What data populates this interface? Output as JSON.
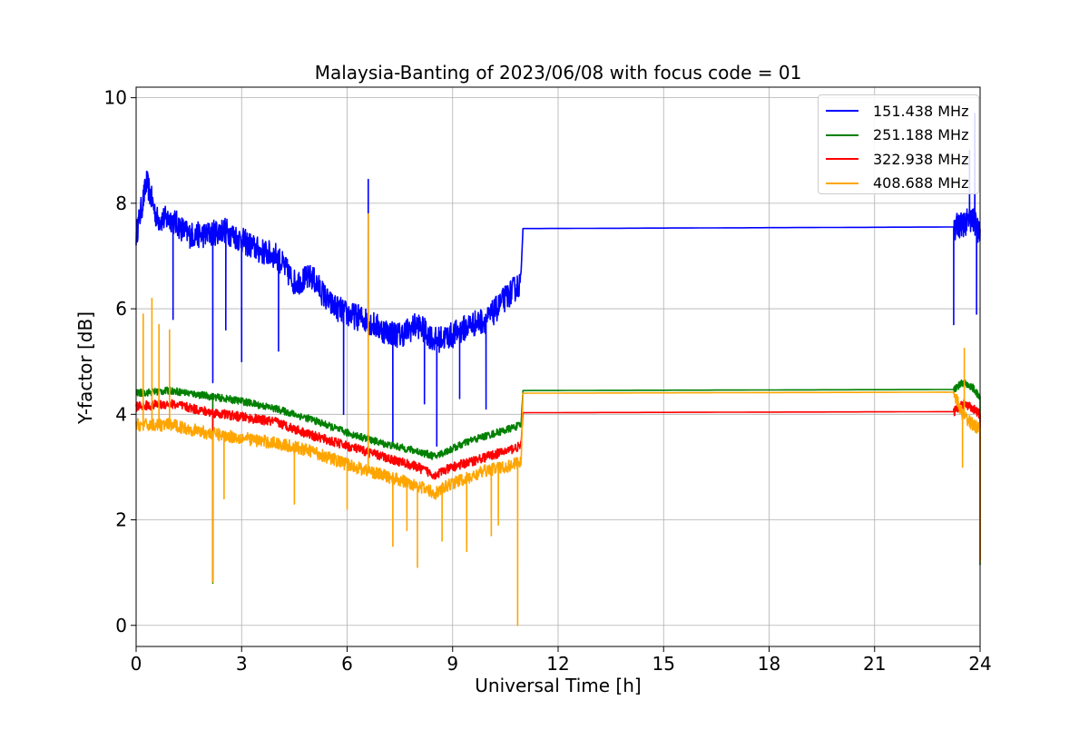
{
  "chart_data": {
    "type": "line",
    "title": "Malaysia-Banting of 2023/06/08 with focus code = 01",
    "xlabel": "Universal Time [h]",
    "ylabel": "Y-factor [dB]",
    "xlim": [
      0,
      24
    ],
    "ylim": [
      -0.4,
      10.2
    ],
    "xticks": [
      "0",
      "3",
      "6",
      "9",
      "12",
      "15",
      "18",
      "21",
      "24"
    ],
    "yticks": [
      "0",
      "2",
      "4",
      "6",
      "8",
      "10"
    ],
    "grid": true,
    "legend_position": "top-right",
    "series": [
      {
        "name": "151.438 MHz",
        "color": "#0000ff",
        "x": [
          0,
          0.3,
          0.6,
          1,
          1.5,
          2,
          2.5,
          3,
          3.5,
          4,
          4.5,
          5,
          5.5,
          6,
          6.5,
          7,
          7.5,
          8,
          8.5,
          9,
          9.5,
          10,
          10.5,
          10.95,
          11.0,
          23.25,
          23.5,
          23.8,
          24
        ],
        "y": [
          7.4,
          8.4,
          7.7,
          7.7,
          7.4,
          7.4,
          7.5,
          7.3,
          7.1,
          7.0,
          6.5,
          6.6,
          6.1,
          5.9,
          5.8,
          5.6,
          5.5,
          5.7,
          5.4,
          5.5,
          5.7,
          5.8,
          6.2,
          6.5,
          7.52,
          7.55,
          7.6,
          7.7,
          7.4
        ],
        "noise": 0.25
      },
      {
        "name": "251.188 MHz",
        "color": "#008000",
        "x": [
          0,
          1,
          2,
          3,
          4,
          5,
          6,
          7,
          8,
          8.5,
          9,
          9.5,
          10,
          10.5,
          10.95,
          11.0,
          23.25,
          23.5,
          23.8,
          24
        ],
        "y": [
          4.4,
          4.45,
          4.35,
          4.25,
          4.1,
          3.9,
          3.65,
          3.45,
          3.3,
          3.2,
          3.35,
          3.5,
          3.6,
          3.7,
          3.8,
          4.45,
          4.47,
          4.6,
          4.5,
          4.3
        ],
        "noise": 0.07
      },
      {
        "name": "322.938 MHz",
        "color": "#ff0000",
        "x": [
          0,
          1,
          2,
          3,
          4,
          5,
          6,
          7,
          8,
          8.5,
          9,
          9.5,
          10,
          10.5,
          10.95,
          11.0,
          23.25,
          23.5,
          23.8,
          24
        ],
        "y": [
          4.15,
          4.2,
          4.05,
          3.95,
          3.85,
          3.6,
          3.4,
          3.2,
          3.0,
          2.85,
          3.0,
          3.1,
          3.2,
          3.3,
          3.4,
          4.03,
          4.05,
          4.2,
          4.1,
          4.0
        ],
        "noise": 0.09
      },
      {
        "name": "408.688 MHz",
        "color": "#ffa500",
        "x": [
          0,
          1,
          2,
          3,
          4,
          5,
          6,
          7,
          8,
          8.5,
          9,
          9.5,
          10,
          10.5,
          10.95,
          11.0,
          23.25,
          23.5,
          23.8,
          24
        ],
        "y": [
          3.8,
          3.8,
          3.65,
          3.55,
          3.45,
          3.3,
          3.05,
          2.85,
          2.65,
          2.5,
          2.7,
          2.8,
          2.95,
          3.0,
          3.1,
          4.4,
          4.42,
          4.0,
          3.8,
          3.7
        ],
        "noise": 0.12
      }
    ],
    "annotations": {
      "dips_151": [
        [
          1.05,
          5.8
        ],
        [
          2.18,
          4.6
        ],
        [
          2.55,
          5.6
        ],
        [
          3.0,
          5.0
        ],
        [
          4.05,
          5.2
        ],
        [
          5.9,
          4.0
        ],
        [
          7.3,
          3.4
        ],
        [
          8.2,
          4.2
        ],
        [
          8.55,
          3.4
        ],
        [
          9.2,
          4.3
        ],
        [
          9.95,
          4.1
        ],
        [
          23.25,
          5.7
        ],
        [
          23.9,
          5.9
        ]
      ],
      "spikes_151": [
        [
          6.6,
          8.45
        ],
        [
          23.7,
          9.0
        ],
        [
          23.85,
          9.7
        ]
      ],
      "spikes_408": [
        [
          0.2,
          5.9
        ],
        [
          0.45,
          6.2
        ],
        [
          0.65,
          5.7
        ],
        [
          0.95,
          5.6
        ],
        [
          6.6,
          7.8
        ],
        [
          23.55,
          5.25
        ]
      ],
      "dips_408": [
        [
          2.18,
          0.82
        ],
        [
          8.0,
          1.1
        ],
        [
          10.85,
          0.0
        ],
        [
          24.0,
          1.2
        ],
        [
          2.5,
          2.4
        ],
        [
          4.5,
          2.3
        ],
        [
          6.0,
          2.2
        ],
        [
          7.3,
          1.5
        ],
        [
          7.7,
          1.8
        ],
        [
          8.7,
          1.6
        ],
        [
          9.4,
          1.4
        ],
        [
          10.1,
          1.7
        ],
        [
          10.3,
          1.9
        ],
        [
          23.5,
          3.0
        ]
      ],
      "dips_251": [
        [
          2.18,
          0.8
        ],
        [
          24.0,
          1.15
        ]
      ],
      "dips_322": [
        [
          2.18,
          0.85
        ],
        [
          24.0,
          1.25
        ]
      ]
    }
  }
}
